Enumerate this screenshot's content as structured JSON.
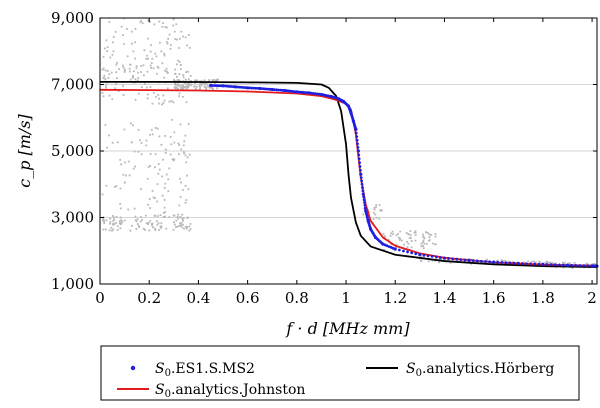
{
  "chart_data": {
    "type": "line",
    "xlabel": "f · d [MHz mm]",
    "ylabel": "c_p [m/s]",
    "xlim": [
      0,
      2.02
    ],
    "ylim": [
      1000,
      9000
    ],
    "x_ticks": [
      0,
      0.2,
      0.4,
      0.6,
      0.8,
      1,
      1.2,
      1.4,
      1.6,
      1.8,
      2
    ],
    "x_tick_labels": [
      "0",
      "0.2",
      "0.4",
      "0.6",
      "0.8",
      "1",
      "1.2",
      "1.4",
      "1.6",
      "1.8",
      "2"
    ],
    "y_ticks": [
      1000,
      3000,
      5000,
      7000,
      9000
    ],
    "y_tick_labels": [
      "1,000",
      "3,000",
      "5,000",
      "7,000",
      "9,000"
    ],
    "grid": "horizontal",
    "legend_position": "below",
    "series": [
      {
        "name": "S0.ES1.S.MS2",
        "label_main": "S",
        "label_sub": "0",
        "label_rest": ".ES1.S.MS2",
        "kind": "points",
        "color": "#1f1fe0",
        "x": [
          0.45,
          0.5,
          0.55,
          0.6,
          0.65,
          0.7,
          0.75,
          0.8,
          0.85,
          0.9,
          0.94,
          0.97,
          0.99,
          1.01,
          1.02,
          1.03,
          1.04,
          1.05,
          1.06,
          1.07,
          1.08,
          1.09,
          1.1,
          1.12,
          1.15,
          1.2,
          1.3,
          1.4,
          1.5,
          1.6,
          1.7,
          1.8,
          1.9,
          2.0,
          2.02
        ],
        "y": [
          6970,
          6960,
          6930,
          6900,
          6880,
          6850,
          6820,
          6780,
          6750,
          6700,
          6640,
          6570,
          6490,
          6350,
          6150,
          5900,
          5650,
          5000,
          4300,
          3700,
          3200,
          2900,
          2650,
          2400,
          2200,
          2050,
          1880,
          1780,
          1710,
          1660,
          1620,
          1590,
          1565,
          1545,
          1540
        ]
      },
      {
        "name": "S0.analytics.Hörberg",
        "label_main": "S",
        "label_sub": "0",
        "label_rest": ".analytics.Hörberg",
        "kind": "line",
        "color": "#000000",
        "x": [
          0,
          0.2,
          0.4,
          0.6,
          0.8,
          0.9,
          0.93,
          0.96,
          0.98,
          1.0,
          1.01,
          1.02,
          1.04,
          1.06,
          1.1,
          1.2,
          1.4,
          1.6,
          1.8,
          2.02
        ],
        "y": [
          7080,
          7080,
          7075,
          7065,
          7050,
          7000,
          6900,
          6650,
          6200,
          5200,
          4300,
          3600,
          2850,
          2450,
          2130,
          1880,
          1690,
          1590,
          1540,
          1510
        ]
      },
      {
        "name": "S0.analytics.Johnston",
        "label_main": "S",
        "label_sub": "0",
        "label_rest": ".analytics.Johnston",
        "kind": "line",
        "color": "#e31a1c",
        "x": [
          0,
          0.2,
          0.4,
          0.6,
          0.8,
          0.9,
          0.95,
          0.98,
          1.0,
          1.02,
          1.04,
          1.06,
          1.08,
          1.1,
          1.15,
          1.2,
          1.3,
          1.4,
          1.6,
          1.8,
          2.02
        ],
        "y": [
          6840,
          6830,
          6820,
          6790,
          6730,
          6650,
          6560,
          6480,
          6420,
          6250,
          5500,
          4200,
          3400,
          2900,
          2400,
          2150,
          1920,
          1790,
          1650,
          1580,
          1550
        ]
      }
    ],
    "background_scatter_color": "#b8b8b8"
  }
}
